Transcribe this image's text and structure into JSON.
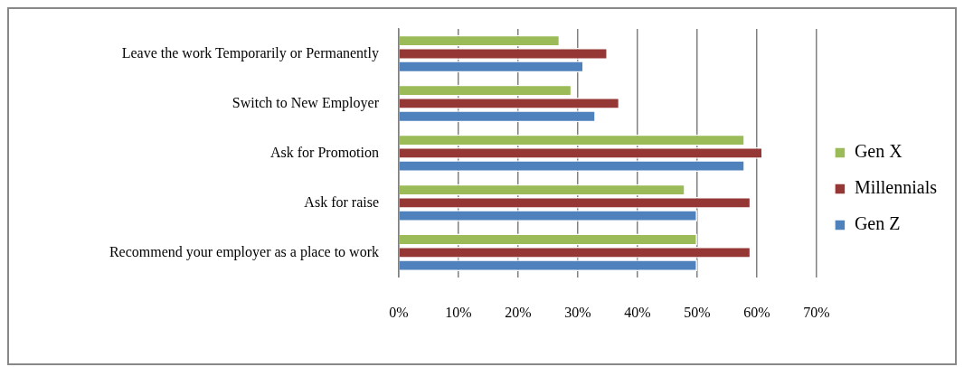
{
  "chart_data": {
    "type": "bar",
    "orientation": "horizontal",
    "categories": [
      "Leave the work Temporarily or Permanently",
      "Switch to New Employer",
      "Ask for Promotion",
      "Ask for raise",
      "Recommend your employer as a place to work"
    ],
    "series": [
      {
        "name": "Gen X",
        "color": "#9bbb59",
        "values": [
          27,
          29,
          58,
          48,
          50
        ]
      },
      {
        "name": "Millennials",
        "color": "#953735",
        "values": [
          35,
          37,
          61,
          59,
          59
        ]
      },
      {
        "name": "Gen Z",
        "color": "#4f81bd",
        "values": [
          31,
          33,
          58,
          50,
          50
        ]
      }
    ],
    "xlim": [
      0,
      70
    ],
    "xticks": [
      {
        "value": 0,
        "label": "0%"
      },
      {
        "value": 10,
        "label": "10%"
      },
      {
        "value": 20,
        "label": "20%"
      },
      {
        "value": 30,
        "label": "30%"
      },
      {
        "value": 40,
        "label": "40%"
      },
      {
        "value": 50,
        "label": "50%"
      },
      {
        "value": 60,
        "label": "60%"
      },
      {
        "value": 70,
        "label": "70%"
      }
    ],
    "grid": "x",
    "legend": "right"
  }
}
